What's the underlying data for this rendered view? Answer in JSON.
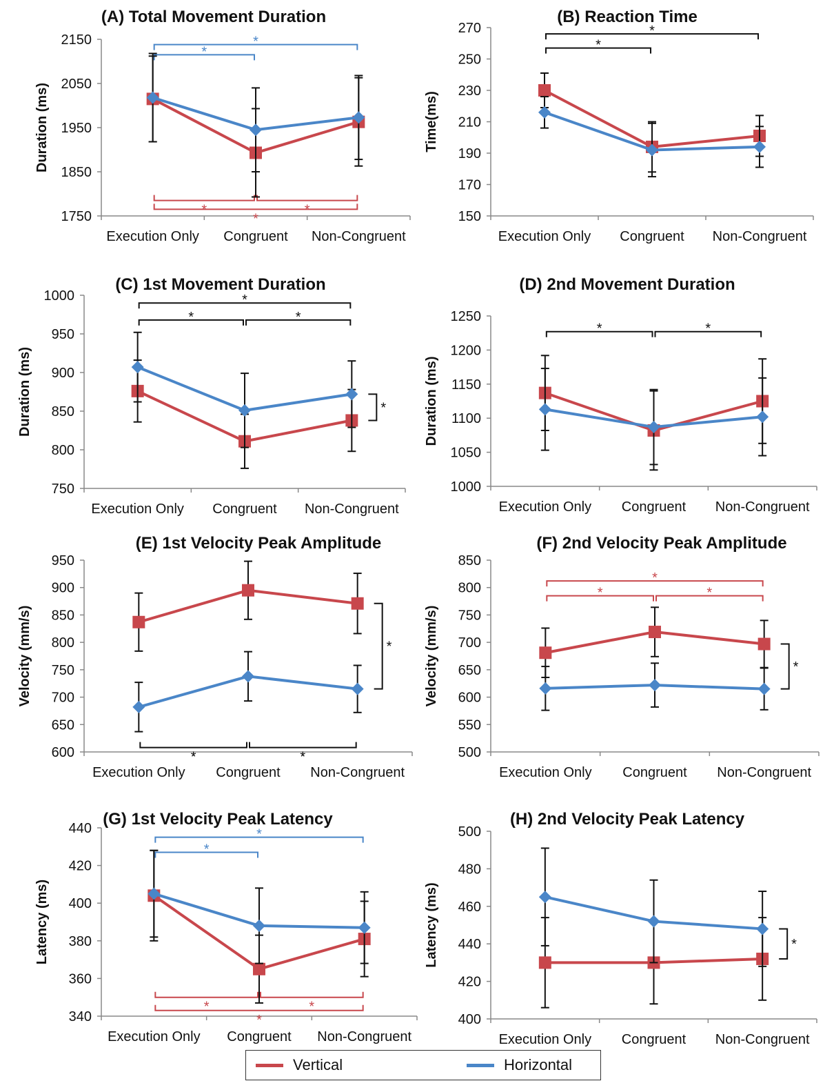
{
  "colors": {
    "Vertical": "#c8474c",
    "Horizontal": "#4a86c8",
    "axis": "#888888",
    "text": "#111111"
  },
  "legend": {
    "vertical_label": "Vertical",
    "horizontal_label": "Horizontal"
  },
  "chart_data": [
    {
      "id": "A",
      "type": "line",
      "title": "(A) Total Movement Duration",
      "ylabel": "Duration (ms)",
      "categories": [
        "Execution Only",
        "Congruent",
        "Non-Congruent"
      ],
      "ylim": [
        1750,
        2150
      ],
      "yticks": [
        1750,
        1850,
        1950,
        2050,
        2150
      ],
      "series": [
        {
          "name": "Vertical",
          "values": [
            2015,
            1893,
            1963
          ],
          "errors": [
            97,
            100,
            100
          ]
        },
        {
          "name": "Horizontal",
          "values": [
            2018,
            1945,
            1973
          ],
          "errors": [
            100,
            95,
            95
          ]
        }
      ],
      "brackets": [
        {
          "from": 0,
          "to": 1,
          "level": 2115,
          "dir": "down",
          "color": "Horizontal",
          "star": "*"
        },
        {
          "from": 0,
          "to": 2,
          "level": 2138,
          "dir": "down",
          "color": "Horizontal",
          "star": "*"
        },
        {
          "from": 0,
          "to": 1,
          "level": 1785,
          "dir": "up",
          "color": "Vertical",
          "star": "*"
        },
        {
          "from": 1,
          "to": 2,
          "level": 1785,
          "dir": "up",
          "color": "Vertical",
          "star": "*"
        },
        {
          "from": 0,
          "to": 2,
          "level": 1765,
          "dir": "up",
          "color": "Vertical",
          "star": "*"
        }
      ],
      "side_bracket": null
    },
    {
      "id": "B",
      "type": "line",
      "title": "(B) Reaction Time",
      "ylabel": "Time(ms)",
      "categories": [
        "Execution Only",
        "Congruent",
        "Non-Congruent"
      ],
      "ylim": [
        150,
        270
      ],
      "yticks": [
        150,
        170,
        190,
        210,
        230,
        250,
        270
      ],
      "series": [
        {
          "name": "Vertical",
          "values": [
            230,
            194,
            201
          ],
          "errors": [
            11,
            16,
            13
          ]
        },
        {
          "name": "Horizontal",
          "values": [
            216,
            192,
            194
          ],
          "errors": [
            10,
            17,
            13
          ]
        }
      ],
      "brackets": [
        {
          "from": 0,
          "to": 1,
          "level": 257,
          "dir": "down",
          "color": "black",
          "star": "*"
        },
        {
          "from": 0,
          "to": 2,
          "level": 266,
          "dir": "down",
          "color": "black",
          "star": "*"
        }
      ],
      "side_bracket": null
    },
    {
      "id": "C",
      "type": "line",
      "title": "(C) 1st Movement Duration",
      "ylabel": "Duration (ms)",
      "categories": [
        "Execution Only",
        "Congruent",
        "Non-Congruent"
      ],
      "ylim": [
        750,
        1000
      ],
      "yticks": [
        750,
        800,
        850,
        900,
        950,
        1000
      ],
      "series": [
        {
          "name": "Vertical",
          "values": [
            876,
            811,
            838
          ],
          "errors": [
            40,
            35,
            40
          ]
        },
        {
          "name": "Horizontal",
          "values": [
            907,
            851,
            872
          ],
          "errors": [
            45,
            48,
            43
          ]
        }
      ],
      "brackets": [
        {
          "from": 0,
          "to": 1,
          "level": 968,
          "dir": "down",
          "color": "black",
          "star": "*"
        },
        {
          "from": 1,
          "to": 2,
          "level": 968,
          "dir": "down",
          "color": "black",
          "star": "*"
        },
        {
          "from": 0,
          "to": 2,
          "level": 990,
          "dir": "down",
          "color": "black",
          "star": "*"
        }
      ],
      "side_bracket": {
        "top": 872,
        "bottom": 838,
        "star": "*",
        "color": "black"
      }
    },
    {
      "id": "D",
      "type": "line",
      "title": "(D) 2nd Movement Duration",
      "ylabel": "Duration (ms)",
      "categories": [
        "Execution Only",
        "Congruent",
        "Non-Congruent"
      ],
      "ylim": [
        1000,
        1250
      ],
      "yticks": [
        1000,
        1050,
        1100,
        1150,
        1200,
        1250
      ],
      "series": [
        {
          "name": "Vertical",
          "values": [
            1137,
            1082,
            1125
          ],
          "errors": [
            55,
            58,
            62
          ]
        },
        {
          "name": "Horizontal",
          "values": [
            1113,
            1087,
            1102
          ],
          "errors": [
            60,
            55,
            57
          ]
        }
      ],
      "brackets": [
        {
          "from": 0,
          "to": 1,
          "level": 1227,
          "dir": "down",
          "color": "black",
          "star": "*"
        },
        {
          "from": 1,
          "to": 2,
          "level": 1227,
          "dir": "down",
          "color": "black",
          "star": "*"
        }
      ],
      "side_bracket": null
    },
    {
      "id": "E",
      "type": "line",
      "title": "(E) 1st Velocity Peak Amplitude",
      "ylabel": "Velocity (mm/s)",
      "categories": [
        "Execution Only",
        "Congruent",
        "Non-Congruent"
      ],
      "ylim": [
        600,
        950
      ],
      "yticks": [
        600,
        650,
        700,
        750,
        800,
        850,
        900,
        950
      ],
      "series": [
        {
          "name": "Vertical",
          "values": [
            837,
            895,
            871
          ],
          "errors": [
            53,
            53,
            55
          ]
        },
        {
          "name": "Horizontal",
          "values": [
            682,
            738,
            715
          ],
          "errors": [
            45,
            45,
            43
          ]
        }
      ],
      "brackets": [
        {
          "from": 0,
          "to": 1,
          "level": 608,
          "dir": "up",
          "color": "black",
          "star": "*"
        },
        {
          "from": 1,
          "to": 2,
          "level": 608,
          "dir": "up",
          "color": "black",
          "star": "*"
        }
      ],
      "side_bracket": {
        "top": 871,
        "bottom": 715,
        "star": "*",
        "color": "black"
      }
    },
    {
      "id": "F",
      "type": "line",
      "title": "(F) 2nd Velocity Peak Amplitude",
      "ylabel": "Velocity (mm/s)",
      "categories": [
        "Execution Only",
        "Congruent",
        "Non-Congruent"
      ],
      "ylim": [
        500,
        850
      ],
      "yticks": [
        500,
        550,
        600,
        650,
        700,
        750,
        800,
        850
      ],
      "series": [
        {
          "name": "Vertical",
          "values": [
            681,
            719,
            697
          ],
          "errors": [
            45,
            45,
            43
          ]
        },
        {
          "name": "Horizontal",
          "values": [
            616,
            622,
            615
          ],
          "errors": [
            40,
            40,
            38
          ]
        }
      ],
      "brackets": [
        {
          "from": 0,
          "to": 1,
          "level": 785,
          "dir": "down",
          "color": "Vertical",
          "star": "*"
        },
        {
          "from": 1,
          "to": 2,
          "level": 785,
          "dir": "down",
          "color": "Vertical",
          "star": "*"
        },
        {
          "from": 0,
          "to": 2,
          "level": 812,
          "dir": "down",
          "color": "Vertical",
          "star": "*"
        }
      ],
      "side_bracket": {
        "top": 697,
        "bottom": 615,
        "star": "*",
        "color": "black"
      }
    },
    {
      "id": "G",
      "type": "line",
      "title": "(G) 1st Velocity Peak Latency",
      "ylabel": "Latency (ms)",
      "categories": [
        "Execution Only",
        "Congruent",
        "Non-Congruent"
      ],
      "ylim": [
        340,
        440
      ],
      "yticks": [
        340,
        360,
        380,
        400,
        420,
        440
      ],
      "series": [
        {
          "name": "Vertical",
          "values": [
            404,
            365,
            381
          ],
          "errors": [
            24,
            18,
            20
          ]
        },
        {
          "name": "Horizontal",
          "values": [
            405,
            388,
            387
          ],
          "errors": [
            23,
            20,
            19
          ]
        }
      ],
      "brackets": [
        {
          "from": 0,
          "to": 1,
          "level": 427,
          "dir": "down",
          "color": "Horizontal",
          "star": "*"
        },
        {
          "from": 0,
          "to": 2,
          "level": 435,
          "dir": "down",
          "color": "Horizontal",
          "star": "*"
        },
        {
          "from": 0,
          "to": 1,
          "level": 350,
          "dir": "up",
          "color": "Vertical",
          "star": "*"
        },
        {
          "from": 1,
          "to": 2,
          "level": 350,
          "dir": "up",
          "color": "Vertical",
          "star": "*"
        },
        {
          "from": 0,
          "to": 2,
          "level": 343,
          "dir": "up",
          "color": "Vertical",
          "star": "*"
        }
      ],
      "side_bracket": null
    },
    {
      "id": "H",
      "type": "line",
      "title": "(H) 2nd Velocity Peak Latency",
      "ylabel": "Latency (ms)",
      "categories": [
        "Execution Only",
        "Congruent",
        "Non-Congruent"
      ],
      "ylim": [
        400,
        500
      ],
      "yticks": [
        400,
        420,
        440,
        460,
        480,
        500
      ],
      "series": [
        {
          "name": "Vertical",
          "values": [
            430,
            430,
            432
          ],
          "errors": [
            24,
            22,
            22
          ]
        },
        {
          "name": "Horizontal",
          "values": [
            465,
            452,
            448
          ],
          "errors": [
            26,
            22,
            20
          ]
        }
      ],
      "brackets": [],
      "side_bracket": {
        "top": 448,
        "bottom": 432,
        "star": "*",
        "color": "black"
      }
    }
  ]
}
